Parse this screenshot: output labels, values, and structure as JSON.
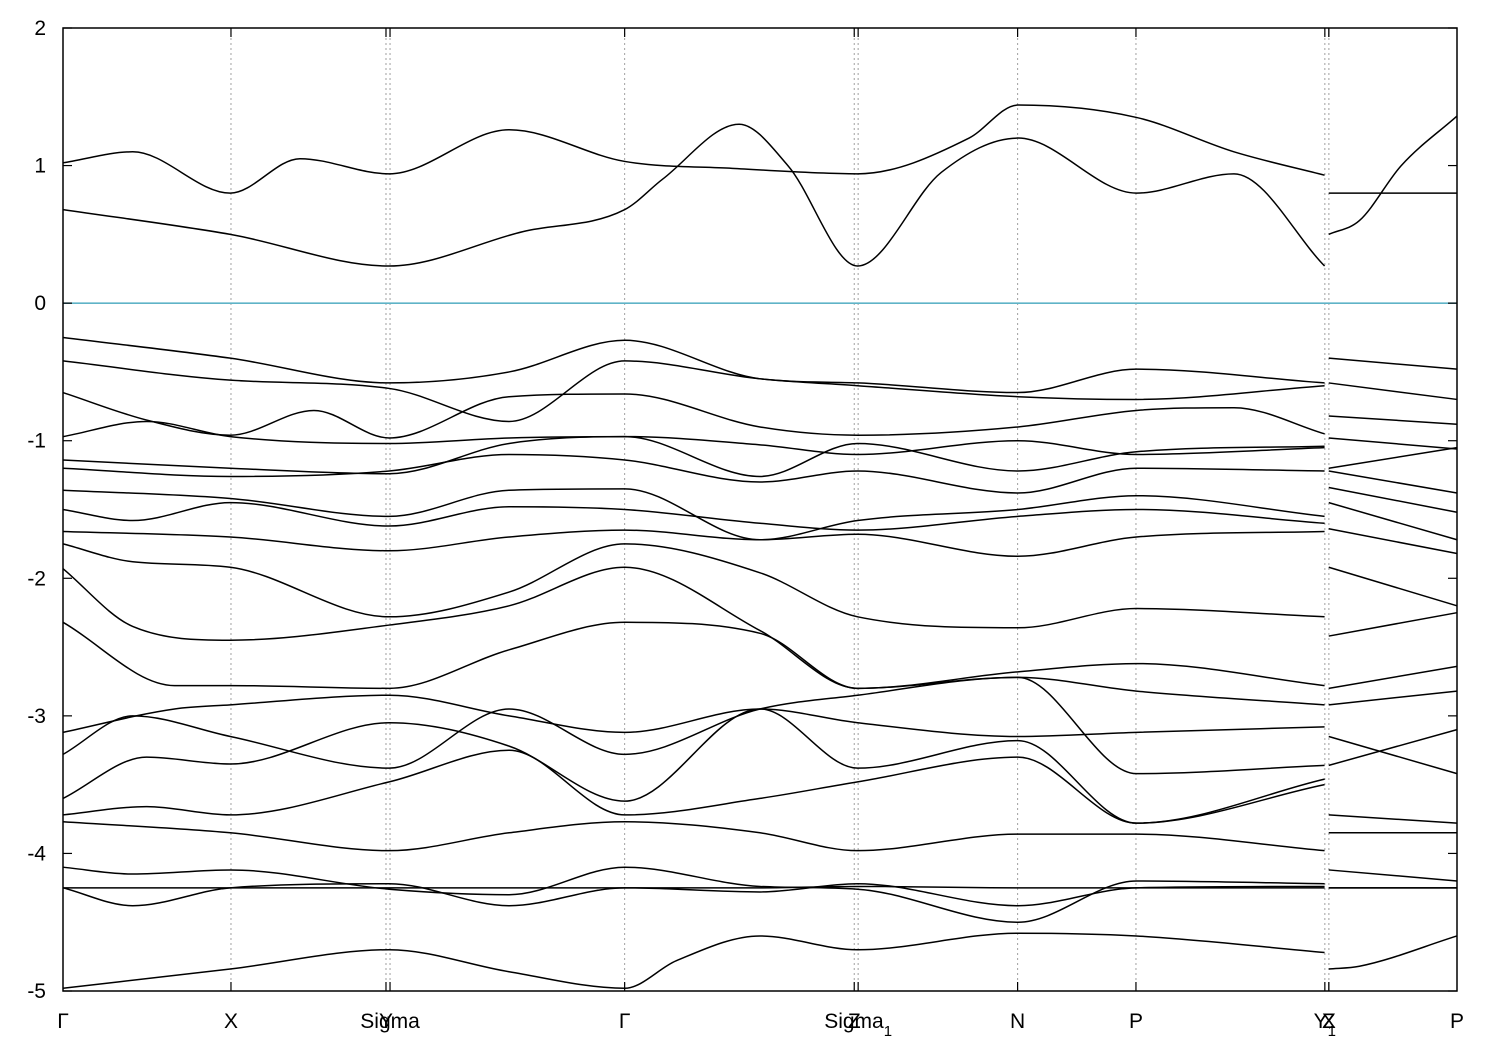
{
  "chart_data": {
    "type": "line",
    "title": "",
    "xlabel": "",
    "ylabel": "",
    "ylim": [
      -5,
      2
    ],
    "yticks": [
      "-5",
      "-4",
      "-3",
      "-2",
      "-1",
      "0",
      "1",
      "2"
    ],
    "grid": "vertical dotted lines at high-symmetry points",
    "legend": "none",
    "fermi_level": 0,
    "colors": {
      "bands": "#000000",
      "fermi": "#5fb3c7",
      "grid": "#a0a0a0"
    },
    "xlim": [
      0,
      1
    ],
    "kpoints": [
      {
        "x": 0.0,
        "label": "Γ",
        "sub": ""
      },
      {
        "x": 0.1205,
        "label": "X",
        "sub": ""
      },
      {
        "x": 0.2317,
        "label": "Y",
        "sub": ""
      },
      {
        "x": 0.2346,
        "label": "Sigma",
        "sub": ""
      },
      {
        "x": 0.4029,
        "label": "Γ",
        "sub": ""
      },
      {
        "x": 0.5676,
        "label": "Z",
        "sub": ""
      },
      {
        "x": 0.5704,
        "label": "Sigma",
        "sub": "1"
      },
      {
        "x": 0.6848,
        "label": "N",
        "sub": ""
      },
      {
        "x": 0.7697,
        "label": "P",
        "sub": ""
      },
      {
        "x": 0.9052,
        "label": "Y",
        "sub": "1"
      },
      {
        "x": 0.9081,
        "label": "Z",
        "sub": ""
      },
      {
        "x": 0.9081,
        "label": "X",
        "sub": ""
      },
      {
        "x": 1.0,
        "label": "P",
        "sub": ""
      }
    ],
    "series": [
      {
        "x": [
          0,
          0.05,
          0.12,
          0.17,
          0.234,
          0.32,
          0.403,
          0.48,
          0.57,
          0.65,
          0.685,
          0.77,
          0.84,
          0.905
        ],
        "y": [
          1.02,
          1.1,
          0.8,
          1.05,
          0.94,
          1.26,
          1.03,
          0.98,
          0.94,
          1.2,
          1.44,
          1.35,
          1.1,
          0.93
        ]
      },
      {
        "x": [
          0.908,
          0.94,
          1.0
        ],
        "y": [
          0.8,
          0.8,
          0.8
        ]
      },
      {
        "x": [
          0,
          0.12,
          0.234,
          0.33,
          0.403,
          0.43,
          0.485,
          0.52,
          0.57,
          0.63,
          0.685,
          0.77,
          0.84,
          0.905
        ],
        "y": [
          0.68,
          0.5,
          0.27,
          0.52,
          0.68,
          0.9,
          1.3,
          1.0,
          0.27,
          0.95,
          1.2,
          0.8,
          0.94,
          0.27
        ]
      },
      {
        "x": [
          0.908,
          0.93,
          0.96,
          1.0
        ],
        "y": [
          0.5,
          0.6,
          1.0,
          1.36
        ]
      },
      {
        "x": [
          0,
          0.12,
          0.234,
          0.32,
          0.403,
          0.5,
          0.57,
          0.685,
          0.77,
          0.905
        ],
        "y": [
          -0.25,
          -0.4,
          -0.58,
          -0.5,
          -0.27,
          -0.55,
          -0.58,
          -0.65,
          -0.48,
          -0.58
        ]
      },
      {
        "x": [
          0.908,
          1.0
        ],
        "y": [
          -0.4,
          -0.48
        ]
      },
      {
        "x": [
          0,
          0.12,
          0.234,
          0.32,
          0.403,
          0.5,
          0.57,
          0.685,
          0.77,
          0.905
        ],
        "y": [
          -0.42,
          -0.56,
          -0.62,
          -0.86,
          -0.42,
          -0.55,
          -0.6,
          -0.68,
          -0.7,
          -0.6
        ]
      },
      {
        "x": [
          0.908,
          1.0
        ],
        "y": [
          -0.58,
          -0.7
        ]
      },
      {
        "x": [
          0,
          0.06,
          0.12,
          0.18,
          0.234,
          0.32,
          0.403,
          0.5,
          0.57,
          0.685,
          0.77,
          0.84,
          0.905
        ],
        "y": [
          -0.65,
          -0.85,
          -0.96,
          -0.78,
          -0.98,
          -0.68,
          -0.66,
          -0.9,
          -0.96,
          -0.9,
          -0.78,
          -0.76,
          -0.95
        ]
      },
      {
        "x": [
          0.908,
          1.0
        ],
        "y": [
          -0.82,
          -0.88
        ]
      },
      {
        "x": [
          0,
          0.06,
          0.12,
          0.234,
          0.32,
          0.403,
          0.5,
          0.57,
          0.685,
          0.77,
          0.905
        ],
        "y": [
          -0.97,
          -0.86,
          -0.97,
          -1.02,
          -0.98,
          -0.97,
          -1.26,
          -1.02,
          -1.22,
          -1.08,
          -1.04
        ]
      },
      {
        "x": [
          0.908,
          1.0
        ],
        "y": [
          -0.98,
          -1.06
        ]
      },
      {
        "x": [
          0,
          0.12,
          0.234,
          0.32,
          0.403,
          0.5,
          0.57,
          0.685,
          0.77,
          0.905
        ],
        "y": [
          -1.14,
          -1.2,
          -1.24,
          -1.02,
          -0.97,
          -1.03,
          -1.1,
          -1.0,
          -1.1,
          -1.05
        ]
      },
      {
        "x": [
          0.908,
          1.0
        ],
        "y": [
          -1.2,
          -1.05
        ]
      },
      {
        "x": [
          0,
          0.12,
          0.234,
          0.32,
          0.403,
          0.5,
          0.57,
          0.685,
          0.77,
          0.905
        ],
        "y": [
          -1.2,
          -1.26,
          -1.22,
          -1.1,
          -1.14,
          -1.3,
          -1.22,
          -1.38,
          -1.2,
          -1.22
        ]
      },
      {
        "x": [
          0.908,
          1.0
        ],
        "y": [
          -1.22,
          -1.38
        ]
      },
      {
        "x": [
          0,
          0.12,
          0.234,
          0.32,
          0.403,
          0.5,
          0.57,
          0.685,
          0.77,
          0.905
        ],
        "y": [
          -1.36,
          -1.42,
          -1.55,
          -1.36,
          -1.35,
          -1.72,
          -1.58,
          -1.5,
          -1.4,
          -1.55
        ]
      },
      {
        "x": [
          0.908,
          1.0
        ],
        "y": [
          -1.34,
          -1.52
        ]
      },
      {
        "x": [
          0,
          0.05,
          0.12,
          0.234,
          0.32,
          0.403,
          0.5,
          0.57,
          0.685,
          0.77,
          0.905
        ],
        "y": [
          -1.5,
          -1.58,
          -1.45,
          -1.62,
          -1.48,
          -1.5,
          -1.6,
          -1.65,
          -1.55,
          -1.5,
          -1.6
        ]
      },
      {
        "x": [
          0.908,
          1.0
        ],
        "y": [
          -1.45,
          -1.72
        ]
      },
      {
        "x": [
          0,
          0.12,
          0.234,
          0.32,
          0.403,
          0.5,
          0.57,
          0.685,
          0.77,
          0.905
        ],
        "y": [
          -1.66,
          -1.7,
          -1.8,
          -1.7,
          -1.65,
          -1.72,
          -1.68,
          -1.84,
          -1.7,
          -1.66
        ]
      },
      {
        "x": [
          0.908,
          1.0
        ],
        "y": [
          -1.64,
          -1.82
        ]
      },
      {
        "x": [
          0,
          0.05,
          0.12,
          0.234,
          0.32,
          0.403,
          0.5,
          0.57,
          0.685,
          0.77,
          0.905
        ],
        "y": [
          -1.75,
          -1.88,
          -1.92,
          -2.28,
          -2.1,
          -1.75,
          -1.96,
          -2.28,
          -2.36,
          -2.22,
          -2.28
        ]
      },
      {
        "x": [
          0.908,
          1.0
        ],
        "y": [
          -1.92,
          -2.2
        ]
      },
      {
        "x": [
          0,
          0.05,
          0.12,
          0.234,
          0.32,
          0.403,
          0.5,
          0.57,
          0.685,
          0.77,
          0.905
        ],
        "y": [
          -1.93,
          -2.35,
          -2.45,
          -2.34,
          -2.2,
          -1.92,
          -2.38,
          -2.8,
          -2.68,
          -2.62,
          -2.78
        ]
      },
      {
        "x": [
          0.908,
          1.0
        ],
        "y": [
          -2.42,
          -2.25
        ]
      },
      {
        "x": [
          0,
          0.08,
          0.12,
          0.234,
          0.32,
          0.403,
          0.5,
          0.57,
          0.685,
          0.77,
          0.905
        ],
        "y": [
          -2.32,
          -2.78,
          -2.78,
          -2.8,
          -2.52,
          -2.32,
          -2.4,
          -2.8,
          -2.72,
          -2.82,
          -2.92
        ]
      },
      {
        "x": [
          0.908,
          1.0
        ],
        "y": [
          -2.8,
          -2.64
        ]
      },
      {
        "x": [
          0,
          0.08,
          0.12,
          0.234,
          0.32,
          0.403,
          0.5,
          0.57,
          0.685,
          0.77,
          0.905
        ],
        "y": [
          -3.12,
          -2.95,
          -2.92,
          -2.85,
          -3.0,
          -3.12,
          -2.95,
          -3.05,
          -3.15,
          -3.12,
          -3.08
        ]
      },
      {
        "x": [
          0.908,
          1.0
        ],
        "y": [
          -2.92,
          -2.82
        ]
      },
      {
        "x": [
          0,
          0.05,
          0.12,
          0.234,
          0.32,
          0.403,
          0.5,
          0.57,
          0.685,
          0.77,
          0.905
        ],
        "y": [
          -3.28,
          -3.0,
          -3.15,
          -3.38,
          -2.95,
          -3.28,
          -2.95,
          -2.85,
          -2.72,
          -3.42,
          -3.36
        ]
      },
      {
        "x": [
          0.908,
          1.0
        ],
        "y": [
          -3.15,
          -3.42
        ]
      },
      {
        "x": [
          0,
          0.06,
          0.12,
          0.234,
          0.32,
          0.403,
          0.5,
          0.57,
          0.685,
          0.77,
          0.905
        ],
        "y": [
          -3.6,
          -3.3,
          -3.35,
          -3.05,
          -3.22,
          -3.62,
          -2.95,
          -3.38,
          -3.18,
          -3.78,
          -3.46
        ]
      },
      {
        "x": [
          0.908,
          1.0
        ],
        "y": [
          -3.72,
          -3.78
        ]
      },
      {
        "x": [
          0,
          0.06,
          0.12,
          0.234,
          0.32,
          0.403,
          0.5,
          0.57,
          0.685,
          0.77,
          0.905
        ],
        "y": [
          -3.72,
          -3.66,
          -3.72,
          -3.48,
          -3.25,
          -3.72,
          -3.6,
          -3.48,
          -3.3,
          -3.78,
          -3.5
        ]
      },
      {
        "x": [
          0.908,
          1.0
        ],
        "y": [
          -3.36,
          -3.1
        ]
      },
      {
        "x": [
          0,
          0.12,
          0.234,
          0.32,
          0.403,
          0.5,
          0.57,
          0.685,
          0.77,
          0.905
        ],
        "y": [
          -3.77,
          -3.85,
          -3.98,
          -3.85,
          -3.77,
          -3.85,
          -3.98,
          -3.86,
          -3.86,
          -3.98
        ]
      },
      {
        "x": [
          0.908,
          1.0
        ],
        "y": [
          -3.85,
          -3.85
        ]
      },
      {
        "x": [
          0,
          0.05,
          0.12,
          0.234,
          0.32,
          0.403,
          0.5,
          0.57,
          0.685,
          0.77,
          0.905
        ],
        "y": [
          -4.1,
          -4.15,
          -4.12,
          -4.26,
          -4.3,
          -4.1,
          -4.24,
          -4.26,
          -4.5,
          -4.2,
          -4.22
        ]
      },
      {
        "x": [
          0.908,
          1.0
        ],
        "y": [
          -4.12,
          -4.2
        ]
      },
      {
        "x": [
          0,
          0.12,
          0.234,
          0.32,
          0.403,
          0.5,
          0.57,
          0.685,
          0.77,
          0.905
        ],
        "y": [
          -4.25,
          -4.25,
          -4.25,
          -4.25,
          -4.25,
          -4.25,
          -4.24,
          -4.25,
          -4.25,
          -4.25
        ]
      },
      {
        "x": [
          0.908,
          1.0
        ],
        "y": [
          -4.25,
          -4.25
        ]
      },
      {
        "x": [
          0,
          0.05,
          0.12,
          0.234,
          0.32,
          0.403,
          0.5,
          0.57,
          0.685,
          0.77,
          0.905
        ],
        "y": [
          -4.25,
          -4.38,
          -4.25,
          -4.22,
          -4.38,
          -4.25,
          -4.28,
          -4.22,
          -4.38,
          -4.25,
          -4.24
        ]
      },
      {
        "x": [
          0.908,
          1.0
        ],
        "y": [
          -4.25,
          -4.25
        ]
      },
      {
        "x": [
          0,
          0.12,
          0.234,
          0.32,
          0.403,
          0.44,
          0.5,
          0.57,
          0.685,
          0.77,
          0.905
        ],
        "y": [
          -4.98,
          -4.84,
          -4.7,
          -4.86,
          -4.98,
          -4.78,
          -4.6,
          -4.7,
          -4.58,
          -4.6,
          -4.72
        ]
      },
      {
        "x": [
          0.908,
          0.93,
          1.0
        ],
        "y": [
          -4.84,
          -4.82,
          -4.6
        ]
      }
    ]
  }
}
